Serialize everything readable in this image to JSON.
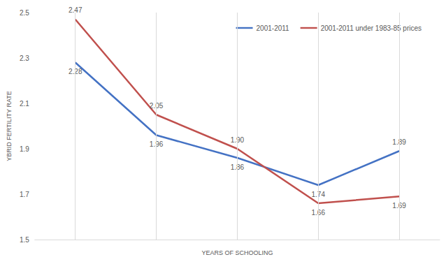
{
  "chart_data": {
    "type": "line",
    "x_label": "YEARS OF SCHOOLING",
    "y_label": "YBRID FERTILITY RATE",
    "categories": [
      null,
      null,
      null,
      null,
      null
    ],
    "series": [
      {
        "name": "2001-2011",
        "color": "#4472c4",
        "values": [
          2.28,
          1.96,
          1.86,
          1.74,
          1.89
        ]
      },
      {
        "name": "2001-2011 under 1983-85 prices",
        "color": "#c0504d",
        "values": [
          2.47,
          2.05,
          1.9,
          1.66,
          1.69
        ],
        "value_labels": [
          "2.47",
          "2.05",
          "1.90",
          "1.66",
          "1.69"
        ]
      }
    ],
    "ylim": [
      1.5,
      2.5
    ],
    "yticks": [
      1.5,
      1.7,
      1.9,
      2.1,
      2.3,
      2.5
    ],
    "grid": true,
    "legend": "upper right",
    "data_labels": true
  }
}
